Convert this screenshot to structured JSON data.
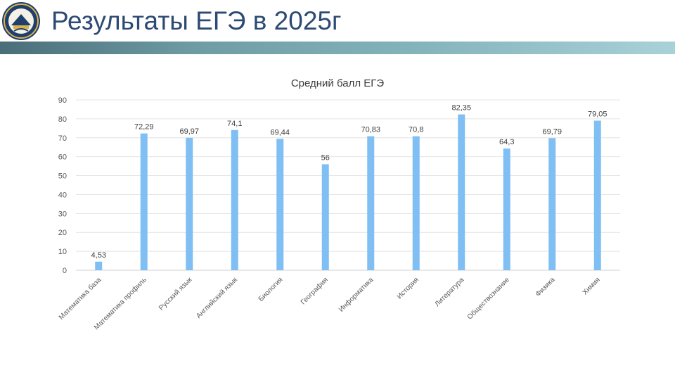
{
  "slide": {
    "title": "Результаты ЕГЭ в 2025г",
    "accent_color": "#2c4a73"
  },
  "chart_data": {
    "type": "bar",
    "title": "Средний балл ЕГЭ",
    "categories": [
      "Математика база",
      "Математика профиль",
      "Русский язык",
      "Английский язык",
      "Биология",
      "География",
      "Информатика",
      "История",
      "Литература",
      "Обществознание",
      "Физика",
      "Химия"
    ],
    "values": [
      4.53,
      72.29,
      69.97,
      74.1,
      69.44,
      56,
      70.83,
      70.8,
      82.35,
      64.3,
      69.79,
      79.05
    ],
    "value_labels": [
      "4,53",
      "72,29",
      "69,97",
      "74,1",
      "69,44",
      "56",
      "70,83",
      "70,8",
      "82,35",
      "64,3",
      "69,79",
      "79,05"
    ],
    "yticks": [
      "0",
      "10",
      "20",
      "30",
      "40",
      "50",
      "60",
      "70",
      "80",
      "90"
    ],
    "ylim": [
      0,
      90
    ],
    "grid": true,
    "bar_color": "#7fbff3"
  }
}
